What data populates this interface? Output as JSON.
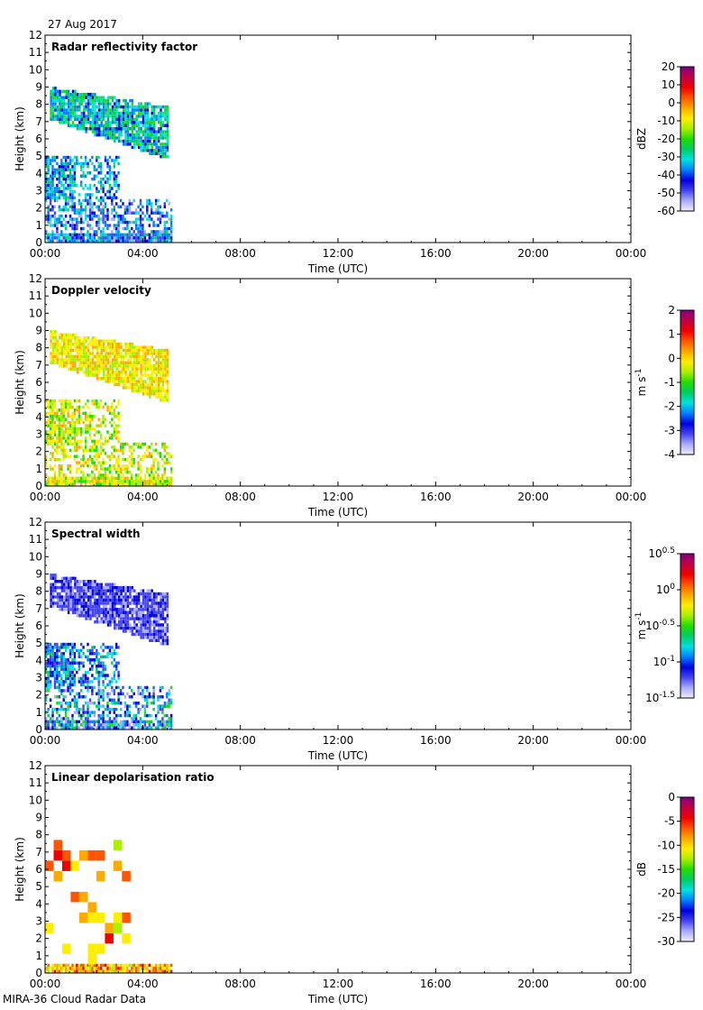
{
  "header": {
    "date": "27 Aug 2017"
  },
  "footer": {
    "label": "MIRA-36 Cloud Radar Data"
  },
  "chart_data": [
    {
      "type": "heatmap",
      "title": "Radar reflectivity factor",
      "xlabel": "Time (UTC)",
      "ylabel": "Height (km)",
      "x_ticks": [
        "00:00",
        "04:00",
        "08:00",
        "12:00",
        "16:00",
        "20:00",
        "00:00"
      ],
      "x_range_hours": [
        0,
        24
      ],
      "y_range_km": [
        0,
        12
      ],
      "y_ticks": [
        "0",
        "1",
        "2",
        "3",
        "4",
        "5",
        "6",
        "7",
        "8",
        "9",
        "10",
        "11",
        "12"
      ],
      "data_coverage_hours": [
        0,
        5.2
      ],
      "colorbar": {
        "label": "dBZ",
        "range": [
          -60,
          20
        ],
        "ticks": [
          "20",
          "10",
          "0",
          "-10",
          "-20",
          "-30",
          "-40",
          "-50",
          "-60"
        ]
      },
      "features": [
        {
          "name": "upper cloud layer",
          "time_hours": [
            0.2,
            5.0
          ],
          "height_km": [
            4.7,
            8.9
          ],
          "dominant": "-40 to -25 dBZ"
        },
        {
          "name": "mid cloud layer",
          "time_hours": [
            0,
            3.0
          ],
          "height_km": [
            2.5,
            4.9
          ],
          "dominant": "-40 to -30 dBZ"
        },
        {
          "name": "boundary layer",
          "time_hours": [
            0,
            5.2
          ],
          "height_km": [
            0,
            2.5
          ],
          "dominant": "-50 to -25 dBZ"
        }
      ]
    },
    {
      "type": "heatmap",
      "title": "Doppler velocity",
      "xlabel": "Time (UTC)",
      "ylabel": "Height (km)",
      "x_ticks": [
        "00:00",
        "04:00",
        "08:00",
        "12:00",
        "16:00",
        "20:00",
        "00:00"
      ],
      "x_range_hours": [
        0,
        24
      ],
      "y_range_km": [
        0,
        12
      ],
      "y_ticks": [
        "0",
        "1",
        "2",
        "3",
        "4",
        "5",
        "6",
        "7",
        "8",
        "9",
        "10",
        "11",
        "12"
      ],
      "data_coverage_hours": [
        0,
        5.2
      ],
      "colorbar": {
        "label": "m s-1",
        "range": [
          -4,
          2
        ],
        "ticks": [
          "2",
          "1",
          "0",
          "-1",
          "-2",
          "-3",
          "-4"
        ]
      },
      "features": [
        {
          "name": "upper cloud layer",
          "time_hours": [
            0.2,
            5.0
          ],
          "height_km": [
            4.7,
            8.9
          ],
          "dominant": "-1 to 0 m/s"
        },
        {
          "name": "mid cloud layer",
          "time_hours": [
            0,
            3.0
          ],
          "height_km": [
            2.5,
            4.9
          ],
          "dominant": "-2 to 0 m/s"
        },
        {
          "name": "boundary layer",
          "time_hours": [
            0,
            5.2
          ],
          "height_km": [
            0,
            2.5
          ],
          "dominant": "-2 to 0 m/s"
        }
      ]
    },
    {
      "type": "heatmap",
      "title": "Spectral width",
      "xlabel": "Time (UTC)",
      "ylabel": "Height (km)",
      "x_ticks": [
        "00:00",
        "04:00",
        "08:00",
        "12:00",
        "16:00",
        "20:00",
        "00:00"
      ],
      "x_range_hours": [
        0,
        24
      ],
      "y_range_km": [
        0,
        12
      ],
      "y_ticks": [
        "0",
        "1",
        "2",
        "3",
        "4",
        "5",
        "6",
        "7",
        "8",
        "9",
        "10",
        "11",
        "12"
      ],
      "data_coverage_hours": [
        0,
        5.2
      ],
      "colorbar": {
        "label": "m s-1",
        "scale": "log10",
        "range_exponent": [
          -1.5,
          0.5
        ],
        "ticks": [
          "10^0.5",
          "10^0",
          "10^-0.5",
          "10^-1",
          "10^-1.5"
        ]
      },
      "features": [
        {
          "name": "upper cloud layer",
          "time_hours": [
            0.2,
            5.0
          ],
          "height_km": [
            4.7,
            8.9
          ],
          "dominant": "10^-1.3"
        },
        {
          "name": "mid cloud layer",
          "time_hours": [
            0,
            3.0
          ],
          "height_km": [
            2.5,
            4.9
          ],
          "dominant": "10^-1.2 to 10^-0.8"
        },
        {
          "name": "boundary layer",
          "time_hours": [
            0,
            5.2
          ],
          "height_km": [
            0,
            2.5
          ],
          "dominant": "10^-1.4 to 10^-0.5"
        }
      ]
    },
    {
      "type": "heatmap",
      "title": "Linear depolarisation ratio",
      "xlabel": "Time (UTC)",
      "ylabel": "Height (km)",
      "x_ticks": [
        "00:00",
        "04:00",
        "08:00",
        "12:00",
        "16:00",
        "20:00",
        "00:00"
      ],
      "x_range_hours": [
        0,
        24
      ],
      "y_range_km": [
        0,
        12
      ],
      "y_ticks": [
        "0",
        "1",
        "2",
        "3",
        "4",
        "5",
        "6",
        "7",
        "8",
        "9",
        "10",
        "11",
        "12"
      ],
      "data_coverage_hours": [
        0,
        5.2
      ],
      "colorbar": {
        "label": "dB",
        "range": [
          -30,
          0
        ],
        "ticks": [
          "0",
          "-5",
          "-10",
          "-15",
          "-20",
          "-25",
          "-30"
        ]
      },
      "features": [
        {
          "name": "near-surface layer",
          "time_hours": [
            0,
            5.2
          ],
          "height_km": [
            0,
            0.4
          ],
          "dominant": "-20 to -5 dB"
        },
        {
          "name": "sparse points",
          "time_hours": [
            0,
            3.5
          ],
          "height_km": [
            0.5,
            7.5
          ],
          "dominant": "-15 to -5 dB"
        }
      ]
    }
  ]
}
